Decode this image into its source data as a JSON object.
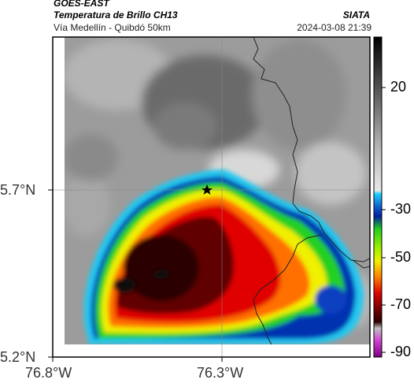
{
  "header": {
    "satellite": "GOES-EAST",
    "product": "Temperatura de Brillo CH13",
    "region": "Vía Medellín - Quibdó 50km",
    "org": "SIATA",
    "datetime": "2024-03-08 21:39"
  },
  "axes": {
    "x_ticks": [
      "76.8°W",
      "76.3°W"
    ],
    "y_ticks": [
      "5.7°N",
      "5.2°N"
    ]
  },
  "colorbar": {
    "ticks": [
      "20",
      "-30",
      "-50",
      "-70",
      "-90"
    ],
    "colors": {
      "warm_top": "#000000",
      "gray_mid": "#b8b8b8",
      "blue": "#1060d0",
      "green": "#20d020",
      "yellow": "#f0f000",
      "orange": "#ff8000",
      "red": "#e00000",
      "darkred": "#300000",
      "magenta": "#d040d0"
    }
  },
  "marker": {
    "symbol": "star",
    "label": ""
  }
}
